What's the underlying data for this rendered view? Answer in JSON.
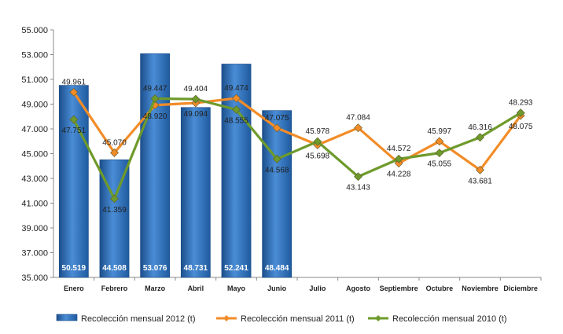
{
  "chart_data": {
    "type": "bar",
    "categories": [
      "Enero",
      "Febrero",
      "Marzo",
      "Abril",
      "Mayo",
      "Junio",
      "Julio",
      "Agosto",
      "Septiembre",
      "Octubre",
      "Noviembre",
      "Diciembre"
    ],
    "ylim": [
      35000,
      55000
    ],
    "y_ticks": [
      "35.000",
      "37.000",
      "39.000",
      "41.000",
      "43.000",
      "45.000",
      "47.000",
      "49.000",
      "51.000",
      "53.000",
      "55.000"
    ],
    "grid": false,
    "legend_position": "bottom",
    "series": [
      {
        "name": "Recolección mensual 2012 (t)",
        "kind": "bar",
        "color": "#2F6FB5",
        "values": [
          50519,
          44508,
          53076,
          48731,
          52241,
          48484,
          null,
          null,
          null,
          null,
          null,
          null
        ],
        "labels": [
          "50.519",
          "44.508",
          "53.076",
          "48.731",
          "52.241",
          "48.484",
          "",
          "",
          "",
          "",
          "",
          ""
        ]
      },
      {
        "name": "Recolección mensual 2011 (t)",
        "kind": "line",
        "color": "#F28C28",
        "values": [
          49961,
          45070,
          48920,
          49094,
          49474,
          47075,
          45698,
          47084,
          44228,
          45997,
          43681,
          48075
        ],
        "labels": [
          "49.961",
          "45.070",
          "48.920",
          "49.094",
          "49.474",
          "47.075",
          "45.698",
          "47.084",
          "44.228",
          "45.997",
          "43.681",
          "48.075"
        ]
      },
      {
        "name": "Recolección mensual 2010 (t)",
        "kind": "line",
        "color": "#6E9A2B",
        "values": [
          47751,
          41359,
          49447,
          49404,
          48555,
          44568,
          45978,
          43143,
          44572,
          45055,
          46316,
          48293
        ],
        "labels": [
          "47.751",
          "41.359",
          "49.447",
          "49.404",
          "48.555",
          "44.568",
          "45.978",
          "43.143",
          "44.572",
          "45.055",
          "46.316",
          "48.293"
        ]
      }
    ]
  }
}
